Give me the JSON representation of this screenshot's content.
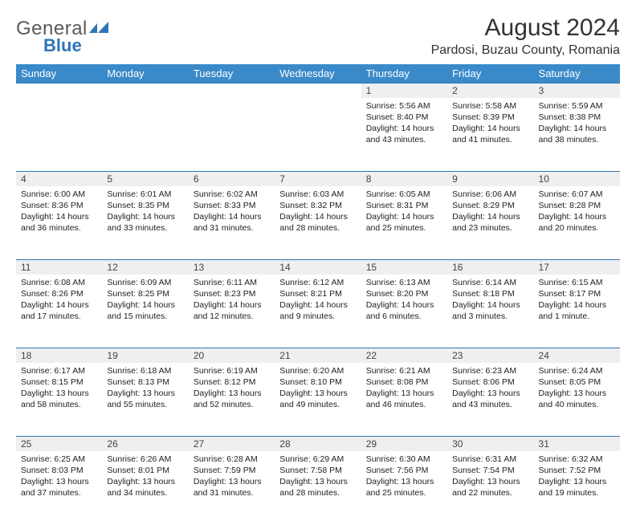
{
  "logo": {
    "word1": "General",
    "word2": "Blue"
  },
  "title": "August 2024",
  "location": "Pardosi, Buzau County, Romania",
  "colors": {
    "header_bg": "#3a8ac9",
    "daynum_bg": "#efefef",
    "row_border": "#2e75b6",
    "logo_blue": "#2e75b6"
  },
  "weekdays": [
    "Sunday",
    "Monday",
    "Tuesday",
    "Wednesday",
    "Thursday",
    "Friday",
    "Saturday"
  ],
  "weeks": [
    [
      null,
      null,
      null,
      null,
      {
        "n": "1",
        "sr": "5:56 AM",
        "ss": "8:40 PM",
        "dl": "14 hours and 43 minutes."
      },
      {
        "n": "2",
        "sr": "5:58 AM",
        "ss": "8:39 PM",
        "dl": "14 hours and 41 minutes."
      },
      {
        "n": "3",
        "sr": "5:59 AM",
        "ss": "8:38 PM",
        "dl": "14 hours and 38 minutes."
      }
    ],
    [
      {
        "n": "4",
        "sr": "6:00 AM",
        "ss": "8:36 PM",
        "dl": "14 hours and 36 minutes."
      },
      {
        "n": "5",
        "sr": "6:01 AM",
        "ss": "8:35 PM",
        "dl": "14 hours and 33 minutes."
      },
      {
        "n": "6",
        "sr": "6:02 AM",
        "ss": "8:33 PM",
        "dl": "14 hours and 31 minutes."
      },
      {
        "n": "7",
        "sr": "6:03 AM",
        "ss": "8:32 PM",
        "dl": "14 hours and 28 minutes."
      },
      {
        "n": "8",
        "sr": "6:05 AM",
        "ss": "8:31 PM",
        "dl": "14 hours and 25 minutes."
      },
      {
        "n": "9",
        "sr": "6:06 AM",
        "ss": "8:29 PM",
        "dl": "14 hours and 23 minutes."
      },
      {
        "n": "10",
        "sr": "6:07 AM",
        "ss": "8:28 PM",
        "dl": "14 hours and 20 minutes."
      }
    ],
    [
      {
        "n": "11",
        "sr": "6:08 AM",
        "ss": "8:26 PM",
        "dl": "14 hours and 17 minutes."
      },
      {
        "n": "12",
        "sr": "6:09 AM",
        "ss": "8:25 PM",
        "dl": "14 hours and 15 minutes."
      },
      {
        "n": "13",
        "sr": "6:11 AM",
        "ss": "8:23 PM",
        "dl": "14 hours and 12 minutes."
      },
      {
        "n": "14",
        "sr": "6:12 AM",
        "ss": "8:21 PM",
        "dl": "14 hours and 9 minutes."
      },
      {
        "n": "15",
        "sr": "6:13 AM",
        "ss": "8:20 PM",
        "dl": "14 hours and 6 minutes."
      },
      {
        "n": "16",
        "sr": "6:14 AM",
        "ss": "8:18 PM",
        "dl": "14 hours and 3 minutes."
      },
      {
        "n": "17",
        "sr": "6:15 AM",
        "ss": "8:17 PM",
        "dl": "14 hours and 1 minute."
      }
    ],
    [
      {
        "n": "18",
        "sr": "6:17 AM",
        "ss": "8:15 PM",
        "dl": "13 hours and 58 minutes."
      },
      {
        "n": "19",
        "sr": "6:18 AM",
        "ss": "8:13 PM",
        "dl": "13 hours and 55 minutes."
      },
      {
        "n": "20",
        "sr": "6:19 AM",
        "ss": "8:12 PM",
        "dl": "13 hours and 52 minutes."
      },
      {
        "n": "21",
        "sr": "6:20 AM",
        "ss": "8:10 PM",
        "dl": "13 hours and 49 minutes."
      },
      {
        "n": "22",
        "sr": "6:21 AM",
        "ss": "8:08 PM",
        "dl": "13 hours and 46 minutes."
      },
      {
        "n": "23",
        "sr": "6:23 AM",
        "ss": "8:06 PM",
        "dl": "13 hours and 43 minutes."
      },
      {
        "n": "24",
        "sr": "6:24 AM",
        "ss": "8:05 PM",
        "dl": "13 hours and 40 minutes."
      }
    ],
    [
      {
        "n": "25",
        "sr": "6:25 AM",
        "ss": "8:03 PM",
        "dl": "13 hours and 37 minutes."
      },
      {
        "n": "26",
        "sr": "6:26 AM",
        "ss": "8:01 PM",
        "dl": "13 hours and 34 minutes."
      },
      {
        "n": "27",
        "sr": "6:28 AM",
        "ss": "7:59 PM",
        "dl": "13 hours and 31 minutes."
      },
      {
        "n": "28",
        "sr": "6:29 AM",
        "ss": "7:58 PM",
        "dl": "13 hours and 28 minutes."
      },
      {
        "n": "29",
        "sr": "6:30 AM",
        "ss": "7:56 PM",
        "dl": "13 hours and 25 minutes."
      },
      {
        "n": "30",
        "sr": "6:31 AM",
        "ss": "7:54 PM",
        "dl": "13 hours and 22 minutes."
      },
      {
        "n": "31",
        "sr": "6:32 AM",
        "ss": "7:52 PM",
        "dl": "13 hours and 19 minutes."
      }
    ]
  ],
  "labels": {
    "sunrise": "Sunrise:",
    "sunset": "Sunset:",
    "daylight": "Daylight:"
  }
}
